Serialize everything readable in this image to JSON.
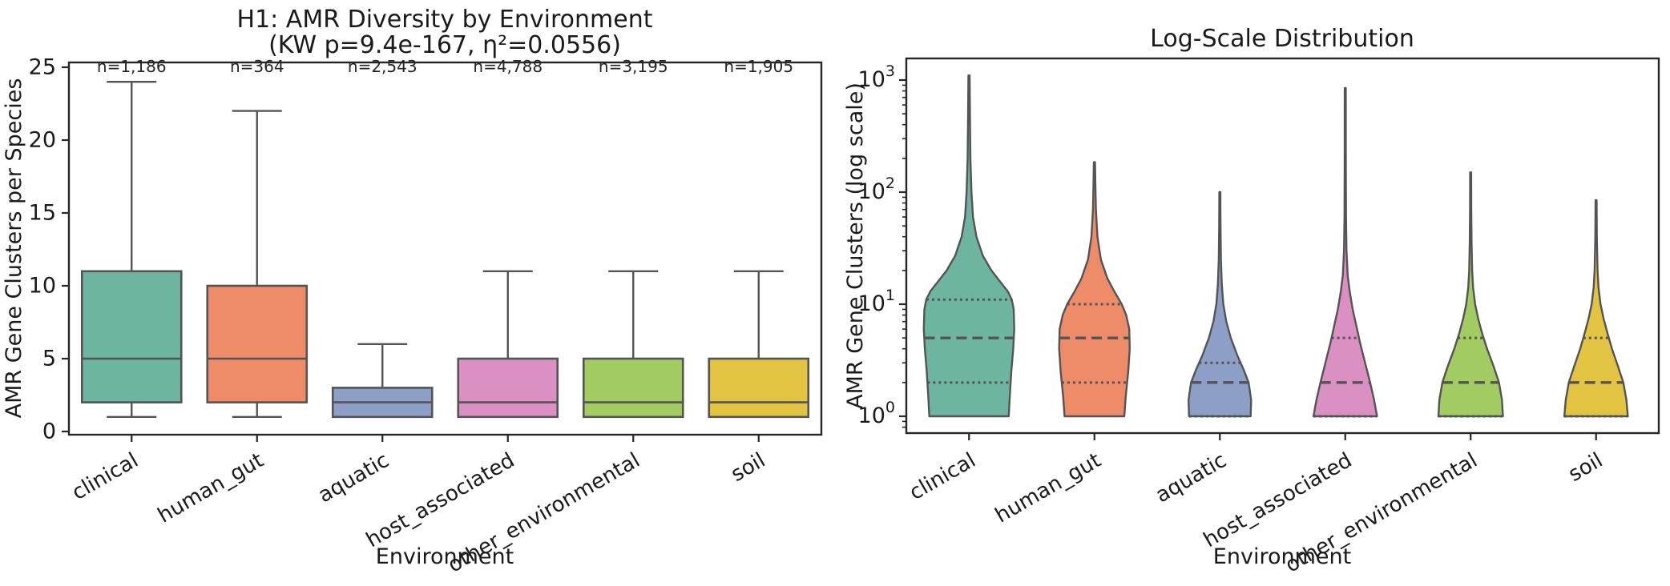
{
  "figure": {
    "background": "#ffffff",
    "palette": [
      "#6db5a0",
      "#ee8c69",
      "#8d9fc6",
      "#db90c3",
      "#a2cb61",
      "#e2c342"
    ],
    "edge_color": "#545454",
    "text_color": "#1a1a1a"
  },
  "chart_data": [
    {
      "type": "box",
      "panel": "left",
      "title_line1": "H1: AMR Diversity by Environment",
      "title_line2": "(KW p=9.4e-167, η²=0.0556)",
      "xlabel": "Environment",
      "ylabel": "AMR Gene Clusters per Species",
      "ylim": [
        0,
        25.3
      ],
      "yticks": [
        0,
        5,
        10,
        15,
        20,
        25
      ],
      "grid": false,
      "categories": [
        "clinical",
        "human_gut",
        "aquatic",
        "host_associated",
        "other_environmental",
        "soil"
      ],
      "series": [
        {
          "name": "clinical",
          "n_label": "n=1,186",
          "whisker_low": 1,
          "q1": 2,
          "median": 5,
          "q3": 11,
          "whisker_high": 24
        },
        {
          "name": "human_gut",
          "n_label": "n=364",
          "whisker_low": 1,
          "q1": 2,
          "median": 5,
          "q3": 10,
          "whisker_high": 22
        },
        {
          "name": "aquatic",
          "n_label": "n=2,543",
          "whisker_low": 1,
          "q1": 1,
          "median": 2,
          "q3": 3,
          "whisker_high": 6
        },
        {
          "name": "host_associated",
          "n_label": "n=4,788",
          "whisker_low": 1,
          "q1": 1,
          "median": 2,
          "q3": 5,
          "whisker_high": 11
        },
        {
          "name": "other_environmental",
          "n_label": "n=3,195",
          "whisker_low": 1,
          "q1": 1,
          "median": 2,
          "q3": 5,
          "whisker_high": 11
        },
        {
          "name": "soil",
          "n_label": "n=1,905",
          "whisker_low": 1,
          "q1": 1,
          "median": 2,
          "q3": 5,
          "whisker_high": 11
        }
      ]
    },
    {
      "type": "violin",
      "panel": "right",
      "title": "Log-Scale Distribution",
      "xlabel": "Environment",
      "ylabel": "AMR Gene Clusters (log scale)",
      "yscale": "log",
      "ylim": [
        0.7,
        1550
      ],
      "ytick_exponents": [
        0,
        1,
        2,
        3
      ],
      "grid": false,
      "categories": [
        "clinical",
        "human_gut",
        "aquatic",
        "host_associated",
        "other_environmental",
        "soil"
      ],
      "series": [
        {
          "name": "clinical",
          "min": 1,
          "q1": 2,
          "median": 5,
          "q3": 11,
          "max": 1100,
          "profile": [
            [
              1,
              0.8
            ],
            [
              1.5,
              0.82
            ],
            [
              2.5,
              0.85
            ],
            [
              4,
              0.89
            ],
            [
              6,
              0.91
            ],
            [
              9,
              0.9
            ],
            [
              11,
              0.86
            ],
            [
              13,
              0.78
            ],
            [
              16,
              0.62
            ],
            [
              20,
              0.45
            ],
            [
              27,
              0.28
            ],
            [
              40,
              0.15
            ],
            [
              60,
              0.08
            ],
            [
              100,
              0.05
            ],
            [
              200,
              0.028
            ],
            [
              500,
              0.018
            ],
            [
              1100,
              0.012
            ]
          ]
        },
        {
          "name": "human_gut",
          "min": 1,
          "q1": 2,
          "median": 5,
          "q3": 10,
          "max": 185,
          "profile": [
            [
              1,
              0.6
            ],
            [
              1.5,
              0.63
            ],
            [
              2.5,
              0.68
            ],
            [
              4,
              0.71
            ],
            [
              6,
              0.7
            ],
            [
              8,
              0.64
            ],
            [
              10,
              0.55
            ],
            [
              13,
              0.4
            ],
            [
              17,
              0.26
            ],
            [
              25,
              0.13
            ],
            [
              40,
              0.06
            ],
            [
              70,
              0.03
            ],
            [
              120,
              0.018
            ],
            [
              185,
              0.012
            ]
          ]
        },
        {
          "name": "aquatic",
          "min": 1,
          "q1": 1,
          "median": 2,
          "q3": 3,
          "max": 100,
          "profile": [
            [
              1,
              0.62
            ],
            [
              1.4,
              0.63
            ],
            [
              2,
              0.58
            ],
            [
              2.6,
              0.48
            ],
            [
              3.5,
              0.35
            ],
            [
              5,
              0.22
            ],
            [
              7,
              0.13
            ],
            [
              10,
              0.07
            ],
            [
              15,
              0.04
            ],
            [
              25,
              0.022
            ],
            [
              50,
              0.014
            ],
            [
              100,
              0.01
            ]
          ]
        },
        {
          "name": "host_associated",
          "min": 1,
          "q1": 1,
          "median": 2,
          "q3": 5,
          "max": 850,
          "profile": [
            [
              1,
              0.64
            ],
            [
              1.4,
              0.58
            ],
            [
              2,
              0.5
            ],
            [
              3,
              0.4
            ],
            [
              4.5,
              0.3
            ],
            [
              6.5,
              0.22
            ],
            [
              9,
              0.15
            ],
            [
              13,
              0.09
            ],
            [
              18,
              0.05
            ],
            [
              30,
              0.025
            ],
            [
              60,
              0.016
            ],
            [
              150,
              0.012
            ],
            [
              850,
              0.01
            ]
          ]
        },
        {
          "name": "other_environmental",
          "min": 1,
          "q1": 1,
          "median": 2,
          "q3": 5,
          "max": 150,
          "profile": [
            [
              1,
              0.65
            ],
            [
              1.4,
              0.63
            ],
            [
              2,
              0.57
            ],
            [
              2.8,
              0.46
            ],
            [
              4,
              0.33
            ],
            [
              5.5,
              0.23
            ],
            [
              7.5,
              0.15
            ],
            [
              10,
              0.09
            ],
            [
              14,
              0.05
            ],
            [
              20,
              0.03
            ],
            [
              35,
              0.018
            ],
            [
              70,
              0.012
            ],
            [
              150,
              0.01
            ]
          ]
        },
        {
          "name": "soil",
          "min": 1,
          "q1": 1,
          "median": 2,
          "q3": 5,
          "max": 85,
          "profile": [
            [
              1,
              0.64
            ],
            [
              1.4,
              0.61
            ],
            [
              2,
              0.55
            ],
            [
              2.8,
              0.44
            ],
            [
              4,
              0.32
            ],
            [
              5.5,
              0.23
            ],
            [
              7.5,
              0.15
            ],
            [
              10,
              0.09
            ],
            [
              14,
              0.05
            ],
            [
              20,
              0.03
            ],
            [
              40,
              0.015
            ],
            [
              85,
              0.01
            ]
          ]
        }
      ]
    }
  ]
}
